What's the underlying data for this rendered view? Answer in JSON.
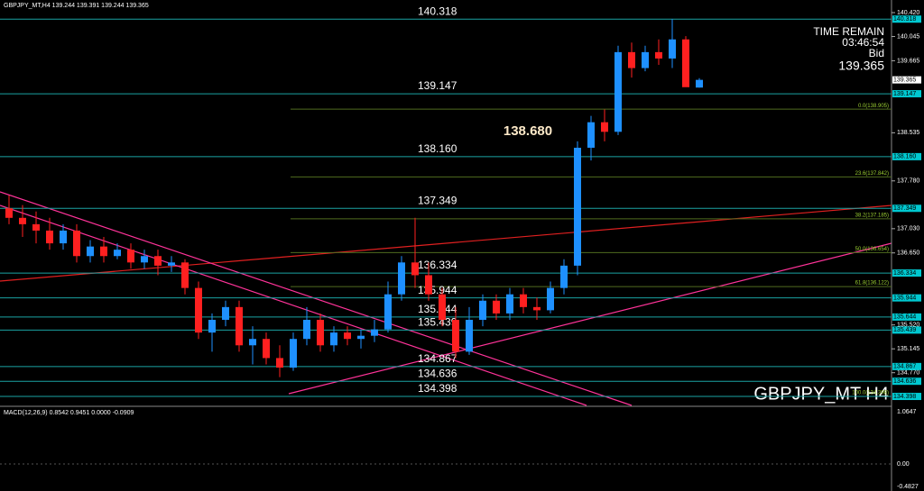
{
  "header": "GBPJPY_MT,H4  139.244 139.391 139.244 139.365",
  "info": {
    "time_remain": "TIME REMAIN",
    "countdown": "03:46:54",
    "bid_label": "Bid",
    "bid": "139.365"
  },
  "watermark": "GBPJPY_MT H4",
  "highlight": "138.680",
  "chart_data": {
    "type": "candlestick",
    "ylim": [
      134.257,
      140.618
    ],
    "up_color": "#1e90ff",
    "down_color": "#ff2020",
    "yticks": [
      {
        "value": 140.42,
        "label": "140.420"
      },
      {
        "value": 140.045,
        "label": "140.045"
      },
      {
        "value": 139.665,
        "label": "139.665"
      },
      {
        "value": 138.535,
        "label": "138.535"
      },
      {
        "value": 137.78,
        "label": "137.780"
      },
      {
        "value": 137.03,
        "label": "137.030"
      },
      {
        "value": 136.65,
        "label": "136.650"
      },
      {
        "value": 135.52,
        "label": "135.520"
      },
      {
        "value": 135.145,
        "label": "135.145"
      },
      {
        "value": 134.77,
        "label": "134.770"
      }
    ],
    "levels": [
      {
        "value": 140.318,
        "label": "140.318"
      },
      {
        "value": 139.147,
        "label": "139.147"
      },
      {
        "value": 138.16,
        "label": "138.160"
      },
      {
        "value": 137.349,
        "label": "137.349"
      },
      {
        "value": 136.334,
        "label": "136.334"
      },
      {
        "value": 135.944,
        "label": "135.944"
      },
      {
        "value": 135.644,
        "label": "135.644"
      },
      {
        "value": 135.439,
        "label": "135.439"
      },
      {
        "value": 134.867,
        "label": "134.867"
      },
      {
        "value": 134.636,
        "label": "134.636"
      },
      {
        "value": 134.398,
        "label": "134.398"
      }
    ],
    "bid_level": {
      "value": 139.365,
      "label": "139.365"
    },
    "fib": [
      {
        "value": 138.905,
        "label": "0.0(138.905)"
      },
      {
        "value": 137.842,
        "label": "23.6(137.842)"
      },
      {
        "value": 137.185,
        "label": "38.2(137.185)"
      },
      {
        "value": 136.654,
        "label": "50.0(136.654)"
      },
      {
        "value": 136.122,
        "label": "61.8(136.122)"
      },
      {
        "value": 134.398,
        "label": "100.0(134.398)"
      }
    ],
    "candles": [
      [
        137.35,
        137.55,
        137.1,
        137.2
      ],
      [
        137.2,
        137.4,
        136.9,
        137.1
      ],
      [
        137.1,
        137.3,
        136.8,
        137.0
      ],
      [
        137.0,
        137.2,
        136.7,
        136.8
      ],
      [
        136.8,
        137.1,
        136.7,
        137.0
      ],
      [
        137.0,
        137.1,
        136.5,
        136.6
      ],
      [
        136.6,
        136.85,
        136.5,
        136.75
      ],
      [
        136.75,
        136.9,
        136.5,
        136.6
      ],
      [
        136.6,
        136.8,
        136.55,
        136.7
      ],
      [
        136.7,
        136.8,
        136.4,
        136.5
      ],
      [
        136.5,
        136.7,
        136.4,
        136.6
      ],
      [
        136.6,
        136.7,
        136.3,
        136.45
      ],
      [
        136.45,
        136.6,
        136.35,
        136.5
      ],
      [
        136.5,
        136.55,
        136.0,
        136.1
      ],
      [
        136.1,
        136.2,
        135.3,
        135.4
      ],
      [
        135.4,
        135.7,
        135.1,
        135.6
      ],
      [
        135.6,
        135.9,
        135.5,
        135.8
      ],
      [
        135.8,
        135.9,
        135.1,
        135.2
      ],
      [
        135.2,
        135.5,
        134.9,
        135.3
      ],
      [
        135.3,
        135.4,
        134.9,
        135.0
      ],
      [
        135.0,
        135.2,
        134.7,
        134.85
      ],
      [
        134.85,
        135.4,
        134.8,
        135.3
      ],
      [
        135.3,
        135.8,
        135.2,
        135.6
      ],
      [
        135.6,
        135.7,
        135.1,
        135.2
      ],
      [
        135.2,
        135.5,
        135.1,
        135.4
      ],
      [
        135.4,
        135.5,
        135.2,
        135.3
      ],
      [
        135.3,
        135.45,
        135.15,
        135.35
      ],
      [
        135.35,
        135.6,
        135.25,
        135.45
      ],
      [
        135.45,
        136.2,
        135.4,
        136.0
      ],
      [
        136.0,
        136.6,
        135.9,
        136.5
      ],
      [
        136.5,
        137.2,
        136.1,
        136.3
      ],
      [
        136.3,
        136.5,
        135.9,
        136.0
      ],
      [
        136.0,
        136.1,
        135.5,
        135.6
      ],
      [
        135.6,
        135.8,
        135.0,
        135.1
      ],
      [
        135.1,
        135.8,
        135.05,
        135.6
      ],
      [
        135.6,
        136.0,
        135.5,
        135.9
      ],
      [
        135.9,
        136.0,
        135.6,
        135.7
      ],
      [
        135.7,
        136.1,
        135.6,
        136.0
      ],
      [
        136.0,
        136.1,
        135.7,
        135.8
      ],
      [
        135.8,
        135.95,
        135.6,
        135.75
      ],
      [
        135.75,
        136.2,
        135.7,
        136.1
      ],
      [
        136.1,
        136.55,
        136.0,
        136.45
      ],
      [
        136.45,
        138.4,
        136.3,
        138.3
      ],
      [
        138.3,
        138.8,
        138.1,
        138.7
      ],
      [
        138.7,
        138.9,
        138.4,
        138.55
      ],
      [
        138.55,
        139.9,
        138.5,
        139.8
      ],
      [
        139.8,
        139.95,
        139.4,
        139.55
      ],
      [
        139.55,
        139.9,
        139.5,
        139.8
      ],
      [
        139.8,
        140.0,
        139.6,
        139.7
      ],
      [
        139.7,
        140.318,
        139.55,
        140.0
      ],
      [
        140.0,
        140.05,
        139.3,
        139.25
      ],
      [
        139.244,
        139.391,
        139.244,
        139.365
      ]
    ]
  },
  "macd": {
    "title": "MACD(12,26,9) 0.8542 0.9451 0.0000 -0.0909",
    "ylim": [
      -0.55,
      1.1
    ],
    "yticks": [
      1.0647,
      {
        "value": 0,
        "label": "0.00"
      },
      -0.4827
    ]
  }
}
